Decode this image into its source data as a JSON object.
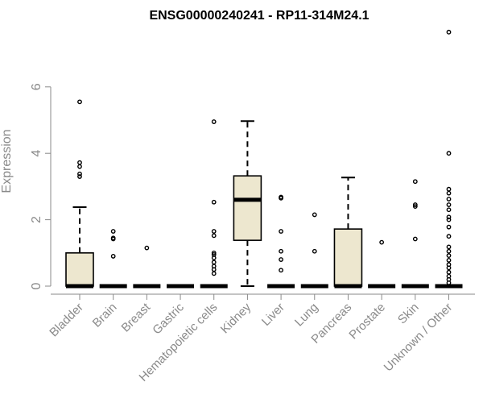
{
  "chart_data": {
    "type": "box",
    "title": "ENSG00000240241 - RP11-314M24.1",
    "xlabel": "",
    "ylabel": "Expression",
    "ylim": [
      0,
      7.8
    ],
    "yticks": [
      0,
      2,
      4,
      6
    ],
    "box_fill": "#ede7cf",
    "categories": [
      "Bladder",
      "Brain",
      "Breast",
      "Gastric",
      "Hematopoietic cells",
      "Kidney",
      "Liver",
      "Lung",
      "Pancreas",
      "Prostate",
      "Skin",
      "Unknown / Other"
    ],
    "boxes": [
      {
        "q1": 0,
        "median": 0,
        "q3": 1.0,
        "whisker_low": 0,
        "whisker_high": 2.38,
        "outliers": [
          3.3,
          3.38,
          3.6,
          3.72,
          5.55
        ]
      },
      {
        "q1": 0,
        "median": 0,
        "q3": 0,
        "whisker_low": 0,
        "whisker_high": 0,
        "outliers": [
          0.9,
          1.42,
          1.45,
          1.65
        ]
      },
      {
        "q1": 0,
        "median": 0,
        "q3": 0,
        "whisker_low": 0,
        "whisker_high": 0,
        "outliers": [
          1.15
        ]
      },
      {
        "q1": 0,
        "median": 0,
        "q3": 0,
        "whisker_low": 0,
        "whisker_high": 0,
        "outliers": []
      },
      {
        "q1": 0,
        "median": 0,
        "q3": 0,
        "whisker_low": 0,
        "whisker_high": 0,
        "outliers": [
          0.38,
          0.5,
          0.6,
          0.72,
          0.85,
          0.95,
          1.0,
          1.52,
          1.65,
          2.53,
          4.95
        ]
      },
      {
        "q1": 1.38,
        "median": 2.6,
        "q3": 3.32,
        "whisker_low": 0,
        "whisker_high": 4.97,
        "outliers": []
      },
      {
        "q1": 0,
        "median": 0,
        "q3": 0,
        "whisker_low": 0,
        "whisker_high": 0,
        "outliers": [
          0.48,
          0.8,
          1.05,
          1.65,
          2.65,
          2.68
        ]
      },
      {
        "q1": 0,
        "median": 0,
        "q3": 0,
        "whisker_low": 0,
        "whisker_high": 0,
        "outliers": [
          1.05,
          2.15
        ]
      },
      {
        "q1": 0,
        "median": 0,
        "q3": 1.72,
        "whisker_low": 0,
        "whisker_high": 3.27,
        "outliers": []
      },
      {
        "q1": 0,
        "median": 0,
        "q3": 0,
        "whisker_low": 0,
        "whisker_high": 0,
        "outliers": [
          1.32
        ]
      },
      {
        "q1": 0,
        "median": 0,
        "q3": 0,
        "whisker_low": 0,
        "whisker_high": 0,
        "outliers": [
          1.42,
          2.4,
          2.45,
          3.15
        ]
      },
      {
        "q1": 0,
        "median": 0,
        "q3": 0,
        "whisker_low": 0,
        "whisker_high": 0,
        "outliers": [
          0.1,
          0.2,
          0.3,
          0.42,
          0.55,
          0.65,
          0.78,
          0.92,
          1.05,
          1.18,
          1.5,
          1.78,
          2.0,
          2.08,
          2.3,
          2.45,
          2.62,
          2.8,
          2.92,
          4.0,
          7.65
        ]
      }
    ],
    "grid": false,
    "legend": "none"
  }
}
